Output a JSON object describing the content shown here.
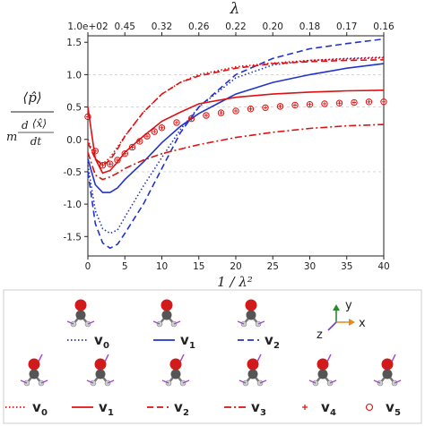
{
  "chart_data": {
    "type": "line",
    "xlabel": "1 / λ²",
    "ylabel": {
      "num": "⟨p̂⟩",
      "den_m": "m",
      "den_d": "d",
      "den_x": "⟨x̂⟩",
      "den_dt": "dt"
    },
    "xlim": [
      0,
      40
    ],
    "ylim": [
      -1.8,
      1.6
    ],
    "xticks": [
      "0",
      "5",
      "10",
      "15",
      "20",
      "25",
      "30",
      "35",
      "40"
    ],
    "yticks": [
      "1.5",
      "1.0",
      "0.5",
      "0.0",
      "-0.5",
      "-1.0",
      "-1.5"
    ],
    "ytick_values": [
      1.5,
      1.0,
      0.5,
      0.0,
      -0.5,
      -1.0,
      -1.5
    ],
    "top_axis": {
      "label": "λ",
      "ticks": [
        "1.0e+02",
        "0.45",
        "0.32",
        "0.26",
        "0.22",
        "0.20",
        "0.18",
        "0.17",
        "0.16"
      ]
    },
    "grid": {
      "horizontal_dashed": [
        -0.5,
        0.5,
        1.0
      ]
    },
    "series": [
      {
        "name": "v0",
        "group": "ch3",
        "color": "#2233cc",
        "dash": "1.5 2.5",
        "x": [
          0,
          1,
          2,
          3,
          4,
          5,
          7.5,
          10,
          12.5,
          15,
          20,
          25,
          30,
          35,
          40
        ],
        "y": [
          -0.4,
          -1.1,
          -1.38,
          -1.45,
          -1.4,
          -1.2,
          -0.72,
          -0.28,
          0.15,
          0.5,
          0.95,
          1.15,
          1.22,
          1.25,
          1.27
        ]
      },
      {
        "name": "v1",
        "group": "ch3",
        "color": "#2233cc",
        "dash": "",
        "x": [
          0,
          1,
          2,
          3,
          4,
          5,
          7.5,
          10,
          12.5,
          15,
          20,
          25,
          30,
          35,
          40
        ],
        "y": [
          -0.3,
          -0.7,
          -0.82,
          -0.82,
          -0.75,
          -0.62,
          -0.35,
          -0.05,
          0.2,
          0.4,
          0.7,
          0.88,
          1.0,
          1.1,
          1.17
        ]
      },
      {
        "name": "v2",
        "group": "ch3",
        "color": "#2233cc",
        "dash": "7 4",
        "x": [
          0,
          1,
          2,
          3,
          4,
          5,
          7.5,
          10,
          12.5,
          15,
          20,
          25,
          30,
          35,
          40
        ],
        "y": [
          -0.5,
          -1.3,
          -1.6,
          -1.68,
          -1.62,
          -1.45,
          -1.0,
          -0.45,
          0.1,
          0.5,
          1.0,
          1.25,
          1.4,
          1.48,
          1.55
        ]
      },
      {
        "name": "v0",
        "group": "ch2o",
        "color": "#dd1111",
        "dash": "1.5 2.5",
        "x": [
          0,
          1,
          2,
          3,
          4,
          5,
          7.5,
          10,
          12.5,
          15,
          20,
          25,
          30,
          35,
          40
        ],
        "y": [
          0.0,
          -0.3,
          -0.38,
          -0.28,
          -0.12,
          0.05,
          0.42,
          0.7,
          0.88,
          1.0,
          1.12,
          1.18,
          1.22,
          1.24,
          1.26
        ]
      },
      {
        "name": "v1",
        "group": "ch2o",
        "color": "#dd1111",
        "dash": "",
        "x": [
          0,
          1,
          2,
          3,
          4,
          5,
          7.5,
          10,
          12.5,
          15,
          20,
          25,
          30,
          35,
          40
        ],
        "y": [
          0.5,
          -0.3,
          -0.52,
          -0.48,
          -0.35,
          -0.2,
          0.05,
          0.28,
          0.42,
          0.55,
          0.65,
          0.7,
          0.73,
          0.75,
          0.76
        ]
      },
      {
        "name": "v2",
        "group": "ch2o",
        "color": "#dd1111",
        "dash": "7 4",
        "x": [
          0,
          1,
          2,
          3,
          4,
          5,
          7.5,
          10,
          12.5,
          15,
          20,
          25,
          30,
          35,
          40
        ],
        "y": [
          -0.05,
          -0.3,
          -0.4,
          -0.32,
          -0.15,
          0.05,
          0.42,
          0.7,
          0.88,
          0.98,
          1.1,
          1.17,
          1.2,
          1.22,
          1.23
        ]
      },
      {
        "name": "v3",
        "group": "ch2o",
        "color": "#dd1111",
        "dash": "8 3 2 3",
        "x": [
          0,
          1,
          2,
          3,
          4,
          5,
          7.5,
          10,
          12.5,
          15,
          20,
          25,
          30,
          35,
          40
        ],
        "y": [
          -0.2,
          -0.55,
          -0.62,
          -0.58,
          -0.52,
          -0.45,
          -0.32,
          -0.22,
          -0.15,
          -0.08,
          0.03,
          0.11,
          0.17,
          0.21,
          0.23
        ]
      },
      {
        "name": "v4",
        "group": "ch2o",
        "color": "#dd1111",
        "marker": "plus",
        "x": [
          0,
          1,
          2,
          3,
          4,
          5,
          6,
          7,
          8,
          9,
          10,
          12,
          14,
          16,
          18,
          20,
          22,
          24,
          26,
          28,
          30,
          32,
          34,
          36,
          38,
          40
        ],
        "y": [
          0.35,
          -0.18,
          -0.4,
          -0.38,
          -0.32,
          -0.22,
          -0.12,
          -0.03,
          0.05,
          0.12,
          0.18,
          0.26,
          0.32,
          0.37,
          0.41,
          0.44,
          0.47,
          0.49,
          0.51,
          0.53,
          0.54,
          0.55,
          0.56,
          0.57,
          0.58,
          0.58
        ]
      },
      {
        "name": "v5",
        "group": "ch2o",
        "color": "#dd1111",
        "marker": "circle",
        "x": [
          0,
          1,
          2,
          3,
          4,
          5,
          6,
          7,
          8,
          9,
          10,
          12,
          14,
          16,
          18,
          20,
          22,
          24,
          26,
          28,
          30,
          32,
          34,
          36,
          38,
          40
        ],
        "y": [
          0.35,
          -0.18,
          -0.4,
          -0.38,
          -0.32,
          -0.22,
          -0.12,
          -0.03,
          0.05,
          0.12,
          0.18,
          0.26,
          0.32,
          0.37,
          0.41,
          0.44,
          0.47,
          0.49,
          0.51,
          0.53,
          0.54,
          0.55,
          0.56,
          0.57,
          0.58,
          0.58
        ]
      }
    ]
  },
  "legend": {
    "row1": [
      {
        "label": "v",
        "sub": "0",
        "color": "#2233cc",
        "dash": "1.5 2.5"
      },
      {
        "label": "v",
        "sub": "1",
        "color": "#2233cc",
        "dash": ""
      },
      {
        "label": "v",
        "sub": "2",
        "color": "#2233cc",
        "dash": "7 4"
      }
    ],
    "row2": [
      {
        "label": "v",
        "sub": "0",
        "color": "#dd1111",
        "dash": "1.5 2.5"
      },
      {
        "label": "v",
        "sub": "1",
        "color": "#dd1111",
        "dash": ""
      },
      {
        "label": "v",
        "sub": "2",
        "color": "#dd1111",
        "dash": "7 4"
      },
      {
        "label": "v",
        "sub": "3",
        "color": "#dd1111",
        "dash": "8 3 2 3"
      },
      {
        "label": "v",
        "sub": "4",
        "color": "#dd1111",
        "marker": "plus"
      },
      {
        "label": "v",
        "sub": "5",
        "color": "#dd1111",
        "marker": "circle"
      }
    ],
    "axes_labels": {
      "y": "y",
      "x": "x",
      "z": "z"
    }
  }
}
